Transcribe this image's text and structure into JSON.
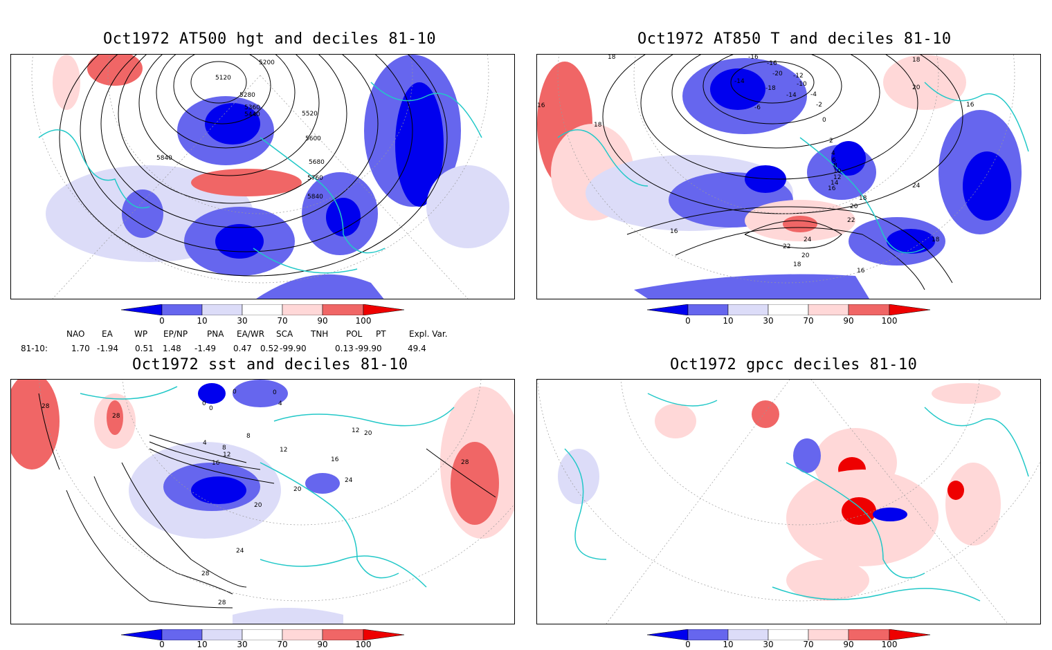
{
  "panels": [
    {
      "title": "Oct1972 AT500 hgt and deciles 81-10",
      "contour_labels": [
        "5200",
        "5120",
        "5280",
        "5360",
        "5440",
        "5520",
        "5600",
        "5680",
        "5760",
        "5840",
        "5840"
      ]
    },
    {
      "title": "Oct1972 AT850 T and deciles 81-10",
      "contour_labels": [
        "18",
        "-16",
        "-14",
        "-16",
        "-20",
        "-18",
        "-12",
        "-10",
        "-14",
        "-6",
        "-4",
        "-2",
        "0",
        "2",
        "4",
        "6",
        "8",
        "10",
        "12",
        "14",
        "16",
        "18",
        "20",
        "22",
        "24",
        "20",
        "22",
        "18",
        "16",
        "16",
        "16",
        "18",
        "20",
        "24",
        "18",
        "16",
        "18"
      ]
    },
    {
      "title": "Oct1972 sst and deciles 81-10",
      "contour_labels": [
        "28",
        "28",
        "0",
        "0",
        "0",
        "0",
        "4",
        "4",
        "8",
        "8",
        "12",
        "16",
        "20",
        "12",
        "16",
        "12",
        "20",
        "24",
        "20",
        "24",
        "28",
        "28",
        "28"
      ]
    },
    {
      "title": "Oct1972 gpcc deciles 81-10",
      "contour_labels": []
    }
  ],
  "colorbar": {
    "labels": [
      "0",
      "10",
      "30",
      "70",
      "90",
      "100"
    ],
    "colors": [
      "#0000ee",
      "#6666ee",
      "#dcdcf8",
      "#ffffff",
      "#ffd8d8",
      "#f06666",
      "#ee0000"
    ]
  },
  "indices": {
    "headers": [
      "NAO",
      "EA",
      "WP",
      "EP/NP",
      "PNA",
      "EA/WR",
      "SCA",
      "TNH",
      "POL",
      "PT",
      "Expl. Var."
    ],
    "row_label": "81-10:",
    "values": [
      "1.70",
      "-1.94",
      "0.51",
      "1.48",
      "-1.49",
      "0.47",
      "0.52",
      "-99.90",
      "0.13",
      "-99.90",
      "49.4"
    ]
  },
  "colors": {
    "coast": "#22c8c8",
    "contour": "#000000",
    "blue_dark": "#0000ee",
    "blue_mid": "#6666ee",
    "blue_light": "#dcdcf8",
    "red_light": "#ffd8d8",
    "red_mid": "#f06666",
    "red_dark": "#ee0000"
  }
}
